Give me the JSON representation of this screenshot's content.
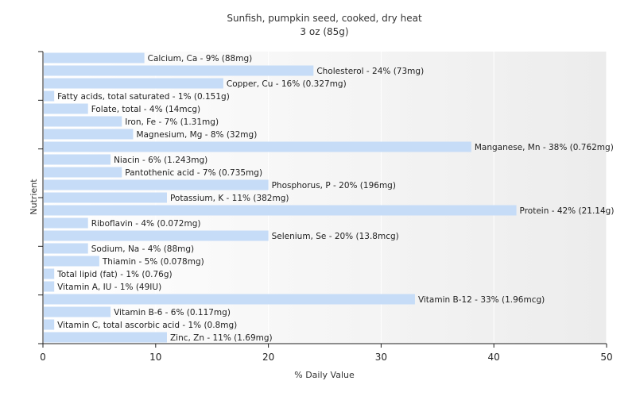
{
  "chart_data": {
    "type": "bar",
    "orientation": "horizontal",
    "title": "Sunfish, pumpkin seed, cooked, dry heat",
    "subtitle": "3 oz (85g)",
    "xlabel": "% Daily Value",
    "ylabel": "Nutrient",
    "xlim": [
      0,
      50
    ],
    "xticks": [
      0,
      10,
      20,
      30,
      40,
      50
    ],
    "grid": true,
    "bar_color": "#c6dcf7",
    "categories": [
      "Calcium, Ca - 9% (88mg)",
      "Cholesterol - 24% (73mg)",
      "Copper, Cu - 16% (0.327mg)",
      "Fatty acids, total saturated - 1% (0.151g)",
      "Folate, total - 4% (14mcg)",
      "Iron, Fe - 7% (1.31mg)",
      "Magnesium, Mg - 8% (32mg)",
      "Manganese, Mn - 38% (0.762mg)",
      "Niacin - 6% (1.243mg)",
      "Pantothenic acid - 7% (0.735mg)",
      "Phosphorus, P - 20% (196mg)",
      "Potassium, K - 11% (382mg)",
      "Protein - 42% (21.14g)",
      "Riboflavin - 4% (0.072mg)",
      "Selenium, Se - 20% (13.8mcg)",
      "Sodium, Na - 4% (88mg)",
      "Thiamin - 5% (0.078mg)",
      "Total lipid (fat) - 1% (0.76g)",
      "Vitamin A, IU - 1% (49IU)",
      "Vitamin B-12 - 33% (1.96mcg)",
      "Vitamin B-6 - 6% (0.117mg)",
      "Vitamin C, total ascorbic acid - 1% (0.8mg)",
      "Zinc, Zn - 11% (1.69mg)"
    ],
    "values": [
      9,
      24,
      16,
      1,
      4,
      7,
      8,
      38,
      6,
      7,
      20,
      11,
      42,
      4,
      20,
      4,
      5,
      1,
      1,
      33,
      6,
      1,
      11
    ]
  }
}
